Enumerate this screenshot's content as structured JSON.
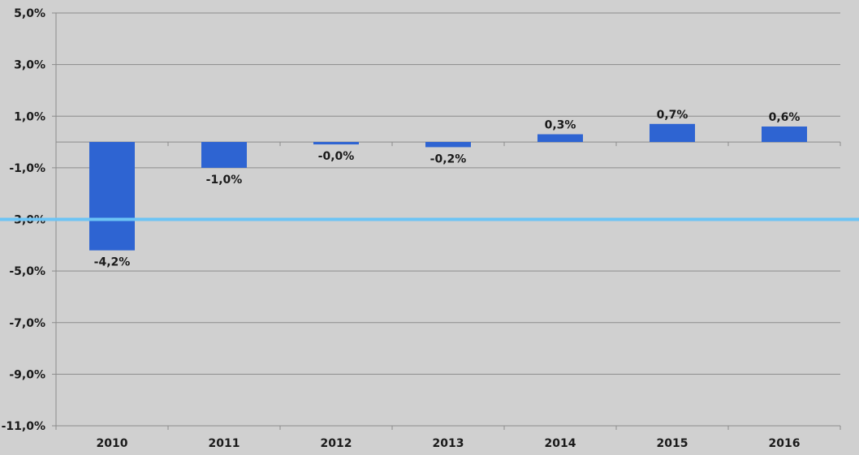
{
  "chart_data": {
    "type": "bar",
    "title": "",
    "xlabel": "",
    "ylabel": "",
    "categories": [
      "2010",
      "2011",
      "2012",
      "2013",
      "2014",
      "2015",
      "2016"
    ],
    "values": [
      -4.2,
      -1.0,
      -0.03,
      -0.2,
      0.3,
      0.7,
      0.6
    ],
    "data_labels": [
      "-4,2%",
      "-1,0%",
      "-0,0%",
      "-0,2%",
      "0,3%",
      "0,7%",
      "0,6%"
    ],
    "yticks": [
      5,
      3,
      1,
      -1,
      -3,
      -5,
      -7,
      -9,
      -11
    ],
    "ytick_labels": [
      "5,0%",
      "3,0%",
      "1,0%",
      "-1,0%",
      "-3,0%",
      "-5,0%",
      "-7,0%",
      "-9,0%",
      "-11,0%"
    ],
    "ylim": [
      -11,
      5
    ],
    "reference_line": -3,
    "grid": true,
    "legend": "none",
    "colors": {
      "bar": "#2e64d2",
      "reference_line": "#6cc4f5",
      "background": "#d0d0d0",
      "grid": "#8c8c8c",
      "text": "#1a1a1a"
    }
  }
}
